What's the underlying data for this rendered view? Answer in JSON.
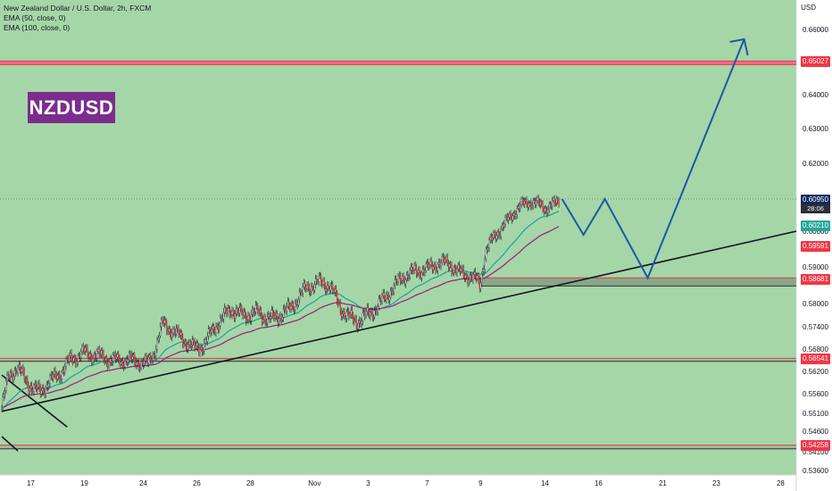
{
  "legend": {
    "symbol_line": "New Zealand Dollar / U.S. Dollar, 2h, FXCM",
    "ema1_line": "EMA (50, close, 0)",
    "ema2_line": "EMA (100, close, 0)"
  },
  "badge": {
    "label": "NZDUSD",
    "color": "#7b2d8e"
  },
  "axis": {
    "currency": "USD"
  },
  "colors": {
    "background": "#a5d6a7",
    "ema50": "#26a69a",
    "ema100": "#9c2780",
    "up_candle": "#ffffff",
    "down_candle": "#f23645",
    "trendline": "#131722",
    "projection": "#1e56a6",
    "resistance_zone": "#f06b8a"
  },
  "price_tags": {
    "last": {
      "price": "0.60950",
      "countdown": "28:06",
      "color": "#0f2a5e"
    },
    "ema50": {
      "price": "0.60210",
      "color": "#26a69a"
    },
    "ema100": {
      "price": "0.59591",
      "color": "#f23645"
    },
    "support": {
      "price": "0.58681",
      "color": "#f23645"
    },
    "top_zone": {
      "price": "0.65027",
      "color": "#f23645"
    },
    "mid_zone": {
      "price": "0.56541",
      "color": "#f23645"
    },
    "low_zone": {
      "price": "0.54258",
      "color": "#f23645"
    }
  },
  "chart_data": {
    "type": "candlestick",
    "title": "New Zealand Dollar / U.S. Dollar, 2h, FXCM",
    "ylabel": "USD",
    "ylim": [
      0.534,
      0.672
    ],
    "grid": false,
    "y_ticks": [
      0.66,
      0.64,
      0.63,
      0.62,
      0.6,
      0.59,
      0.58,
      0.574,
      0.568,
      0.562,
      0.556,
      0.551,
      0.546,
      0.541,
      0.536
    ],
    "y_tick_labels": [
      "0.66000",
      "0.64000",
      "0.63000",
      "0.62000",
      "0.60000",
      "0.59000",
      "0.58000",
      "0.57400",
      "0.56800",
      "0.56200",
      "0.55600",
      "0.55100",
      "0.54600",
      "0.54100",
      "0.53600"
    ],
    "x_tick_labels": [
      "17",
      "19",
      "24",
      "26",
      "28",
      "Nov",
      "3",
      "7",
      "9",
      "14",
      "16",
      "21",
      "23",
      "28"
    ],
    "x_tick_index": [
      2,
      52,
      107,
      157,
      207,
      267,
      317,
      372,
      422,
      482,
      532,
      592,
      642,
      702
    ],
    "candles_step": 1,
    "close_path": [
      [
        0,
        0.5525
      ],
      [
        6,
        0.5605
      ],
      [
        14,
        0.563
      ],
      [
        22,
        0.5598
      ],
      [
        30,
        0.5572
      ],
      [
        36,
        0.5566
      ],
      [
        44,
        0.5592
      ],
      [
        54,
        0.5614
      ],
      [
        64,
        0.5652
      ],
      [
        76,
        0.567
      ],
      [
        90,
        0.5662
      ],
      [
        104,
        0.5649
      ],
      [
        116,
        0.5651
      ],
      [
        126,
        0.5648
      ],
      [
        136,
        0.564
      ],
      [
        142,
        0.5672
      ],
      [
        150,
        0.5748
      ],
      [
        160,
        0.5728
      ],
      [
        170,
        0.5704
      ],
      [
        180,
        0.5682
      ],
      [
        188,
        0.569
      ],
      [
        200,
        0.5745
      ],
      [
        214,
        0.5786
      ],
      [
        226,
        0.5768
      ],
      [
        238,
        0.5778
      ],
      [
        250,
        0.576
      ],
      [
        258,
        0.5768
      ],
      [
        270,
        0.579
      ],
      [
        284,
        0.5843
      ],
      [
        296,
        0.5858
      ],
      [
        306,
        0.585
      ],
      [
        316,
        0.579
      ],
      [
        322,
        0.5768
      ],
      [
        332,
        0.5754
      ],
      [
        340,
        0.5768
      ],
      [
        350,
        0.579
      ],
      [
        362,
        0.5832
      ],
      [
        374,
        0.5872
      ],
      [
        386,
        0.5888
      ],
      [
        398,
        0.5896
      ],
      [
        408,
        0.5912
      ],
      [
        418,
        0.591
      ],
      [
        426,
        0.5886
      ],
      [
        436,
        0.5876
      ],
      [
        444,
        0.5862
      ],
      [
        446,
        0.585
      ],
      [
        452,
        0.5946
      ],
      [
        462,
        0.5996
      ],
      [
        472,
        0.603
      ],
      [
        480,
        0.6065
      ],
      [
        488,
        0.608
      ],
      [
        494,
        0.609
      ],
      [
        500,
        0.6078
      ],
      [
        508,
        0.607
      ],
      [
        516,
        0.6078
      ],
      [
        520,
        0.609
      ]
    ],
    "series": [
      {
        "name": "EMA (50, close, 0)",
        "color": "#26a69a",
        "last": 0.6021
      },
      {
        "name": "EMA (100, close, 0)",
        "color": "#9c2780",
        "last": 0.59591
      }
    ],
    "zones": [
      {
        "label": "0.65027",
        "from": 0.6492,
        "to": 0.6503
      },
      {
        "label": "0.56541",
        "from": 0.5647,
        "to": 0.5655
      },
      {
        "label": "0.54258",
        "from": 0.5417,
        "to": 0.5426
      },
      {
        "label": "0.58681",
        "from": 0.5848,
        "to": 0.587
      }
    ],
    "projection": [
      [
        523,
        0.6095
      ],
      [
        543,
        0.599
      ],
      [
        563,
        0.6095
      ],
      [
        603,
        0.587
      ],
      [
        693,
        0.657
      ]
    ]
  }
}
